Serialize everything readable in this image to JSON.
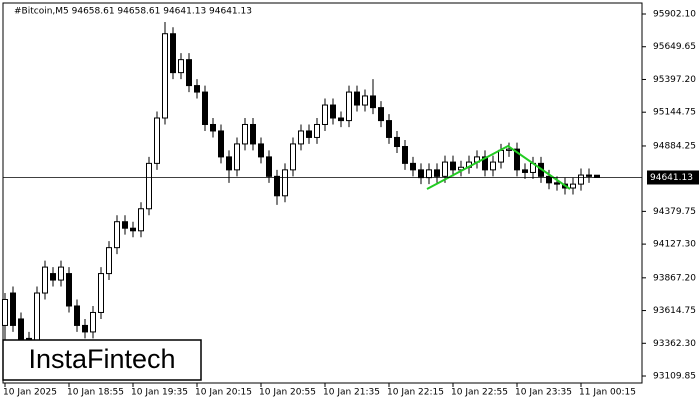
{
  "chart_data": {
    "type": "candlestick",
    "title": "#Bitcoin,M5  94658.61 94658.61 94641.13 94641.13",
    "watermark": "InstaFintech",
    "categories": [
      "10 Jan 2025",
      null,
      null,
      null,
      null,
      null,
      null,
      null,
      "10 Jan 18:55",
      null,
      null,
      null,
      null,
      null,
      null,
      null,
      "10 Jan 19:35",
      null,
      null,
      null,
      null,
      null,
      null,
      null,
      "10 Jan 20:15",
      null,
      null,
      null,
      null,
      null,
      null,
      null,
      "10 Jan 20:55",
      null,
      null,
      null,
      null,
      null,
      null,
      null,
      "10 Jan 21:35",
      null,
      null,
      null,
      null,
      null,
      null,
      null,
      "10 Jan 22:15",
      null,
      null,
      null,
      null,
      null,
      null,
      null,
      "10 Jan 22:55",
      null,
      null,
      null,
      null,
      null,
      null,
      null,
      "10 Jan 23:35",
      null,
      null,
      null,
      null,
      null,
      null,
      null,
      "11 Jan 00:15",
      null,
      null
    ],
    "open": [
      93500,
      93750,
      93550,
      93400,
      93350,
      93750,
      93900,
      93850,
      93900,
      93650,
      93500,
      93450,
      93600,
      93900,
      94100,
      94300,
      94250,
      94230,
      94400,
      94750,
      95100,
      95750,
      95450,
      95550,
      95350,
      95300,
      95050,
      95000,
      94800,
      94700,
      94900,
      95050,
      94900,
      94800,
      94650,
      94500,
      94700,
      94900,
      95000,
      94950,
      95050,
      95200,
      95100,
      95080,
      95300,
      95200,
      95270,
      95180,
      95080,
      94950,
      94880,
      94750,
      94700,
      94640,
      94700,
      94650,
      94760,
      94700,
      94720,
      94760,
      94800,
      94700,
      94760,
      94850,
      94860,
      94700,
      94680,
      94750,
      94650,
      94600,
      94590,
      94560,
      94590,
      94660,
      94658.61
    ],
    "high": [
      93750,
      93800,
      93600,
      93450,
      93800,
      94000,
      93950,
      94000,
      93950,
      93700,
      93550,
      93650,
      93950,
      94150,
      94350,
      94350,
      94300,
      94450,
      94800,
      95150,
      95840,
      95800,
      95600,
      95600,
      95400,
      95350,
      95100,
      95050,
      94850,
      94950,
      95100,
      95100,
      94950,
      94850,
      94700,
      94750,
      94950,
      95050,
      95050,
      95100,
      95250,
      95250,
      95150,
      95350,
      95350,
      95320,
      95400,
      95230,
      95130,
      95000,
      94930,
      94800,
      94750,
      94750,
      94750,
      94810,
      94810,
      94770,
      94810,
      94850,
      94850,
      94810,
      94900,
      94910,
      94910,
      94750,
      94800,
      94800,
      94700,
      94650,
      94640,
      94640,
      94710,
      94710,
      94658.61
    ],
    "low": [
      93200,
      93450,
      93300,
      93250,
      93300,
      93700,
      93800,
      93800,
      93600,
      93450,
      93400,
      93400,
      93550,
      93850,
      94050,
      94200,
      94180,
      94180,
      94350,
      94700,
      95050,
      95400,
      95400,
      95300,
      95250,
      95000,
      94950,
      94750,
      94600,
      94650,
      94850,
      94850,
      94750,
      94600,
      94430,
      94450,
      94650,
      94850,
      94900,
      94900,
      95000,
      95050,
      95030,
      95030,
      95150,
      95150,
      95130,
      95030,
      94900,
      94830,
      94700,
      94650,
      94590,
      94590,
      94600,
      94600,
      94650,
      94650,
      94670,
      94710,
      94650,
      94650,
      94710,
      94800,
      94650,
      94630,
      94630,
      94600,
      94550,
      94540,
      94510,
      94510,
      94540,
      94600,
      94641.13
    ],
    "close": [
      93700,
      93500,
      93350,
      93300,
      93750,
      93950,
      93850,
      93950,
      93650,
      93500,
      93450,
      93600,
      93900,
      94100,
      94300,
      94250,
      94230,
      94400,
      94750,
      95100,
      95750,
      95450,
      95550,
      95350,
      95300,
      95050,
      95000,
      94800,
      94700,
      94900,
      95050,
      94900,
      94800,
      94650,
      94500,
      94700,
      94900,
      95000,
      94950,
      95050,
      95200,
      95100,
      95080,
      95300,
      95200,
      95270,
      95180,
      95080,
      94950,
      94880,
      94750,
      94700,
      94640,
      94700,
      94650,
      94760,
      94700,
      94720,
      94760,
      94800,
      94700,
      94760,
      94850,
      94860,
      94700,
      94680,
      94750,
      94650,
      94600,
      94590,
      94560,
      94590,
      94660,
      94650,
      94641.13
    ],
    "up_color": "#ffffff",
    "down_color": "#000000",
    "current_price": 94641.13,
    "ylim": [
      93056,
      95987
    ],
    "yticks": [
      {
        "value": 95902.1,
        "label": "95902.10"
      },
      95649.65,
      {
        "value": 95397.2,
        "label": "95397.20"
      },
      95144.75,
      94884.25,
      94379.75,
      {
        "value": 94127.3,
        "label": "94127.30"
      },
      {
        "value": 93867.2,
        "label": "93867.20"
      },
      93614.75,
      {
        "value": 93362.3,
        "label": "93362.30"
      },
      93109.85
    ],
    "grid": false
  }
}
